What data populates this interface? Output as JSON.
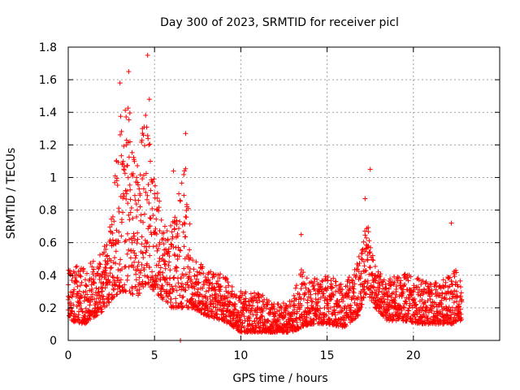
{
  "chart_data": {
    "type": "scatter",
    "title": "Day 300 of 2023, SRMTID for receiver picl",
    "xlabel": "GPS time / hours",
    "ylabel": "SRMTID / TECUs",
    "xlim": [
      0,
      25
    ],
    "ylim": [
      0,
      1.8
    ],
    "x_ticks": [
      "0",
      "5",
      "10",
      "15",
      "20"
    ],
    "y_ticks": [
      "0",
      "0.2",
      "0.4",
      "0.6",
      "0.8",
      "1",
      "1.2",
      "1.4",
      "1.6",
      "1.8"
    ],
    "x_tick_values": [
      0,
      5,
      10,
      15,
      20
    ],
    "y_tick_values": [
      0,
      0.2,
      0.4,
      0.6,
      0.8,
      1.0,
      1.2,
      1.4,
      1.6,
      1.8
    ],
    "grid": true,
    "marker": "+",
    "color": "#ff0000",
    "series": [
      {
        "name": "SRMTID",
        "x_range": [
          0,
          22.8
        ],
        "description_points": [
          {
            "x": 0.0,
            "y": 0.25
          },
          {
            "x": 0.3,
            "y": 0.3
          },
          {
            "x": 0.6,
            "y": 0.4
          },
          {
            "x": 1.0,
            "y": 0.3
          },
          {
            "x": 1.5,
            "y": 0.35
          },
          {
            "x": 1.8,
            "y": 0.45
          },
          {
            "x": 2.2,
            "y": 0.35
          },
          {
            "x": 2.6,
            "y": 0.6
          },
          {
            "x": 2.8,
            "y": 1.1
          },
          {
            "x": 3.0,
            "y": 1.58
          },
          {
            "x": 3.2,
            "y": 0.9
          },
          {
            "x": 3.5,
            "y": 1.65
          },
          {
            "x": 3.7,
            "y": 0.6
          },
          {
            "x": 4.0,
            "y": 0.8
          },
          {
            "x": 4.3,
            "y": 1.3
          },
          {
            "x": 4.6,
            "y": 1.75
          },
          {
            "x": 4.7,
            "y": 1.48
          },
          {
            "x": 5.0,
            "y": 0.9
          },
          {
            "x": 5.3,
            "y": 0.6
          },
          {
            "x": 5.6,
            "y": 0.7
          },
          {
            "x": 6.1,
            "y": 1.04
          },
          {
            "x": 6.5,
            "y": 0.0
          },
          {
            "x": 6.8,
            "y": 1.27
          },
          {
            "x": 7.0,
            "y": 0.5
          },
          {
            "x": 7.5,
            "y": 0.35
          },
          {
            "x": 8.0,
            "y": 0.3
          },
          {
            "x": 8.5,
            "y": 0.28
          },
          {
            "x": 9.0,
            "y": 0.25
          },
          {
            "x": 9.5,
            "y": 0.22
          },
          {
            "x": 10.0,
            "y": 0.18
          },
          {
            "x": 10.5,
            "y": 0.1
          },
          {
            "x": 11.0,
            "y": 0.2
          },
          {
            "x": 11.5,
            "y": 0.25
          },
          {
            "x": 12.0,
            "y": 0.15
          },
          {
            "x": 12.5,
            "y": 0.1
          },
          {
            "x": 13.0,
            "y": 0.12
          },
          {
            "x": 13.5,
            "y": 0.65
          },
          {
            "x": 14.0,
            "y": 0.3
          },
          {
            "x": 14.5,
            "y": 0.25
          },
          {
            "x": 15.0,
            "y": 0.2
          },
          {
            "x": 15.5,
            "y": 0.3
          },
          {
            "x": 16.0,
            "y": 0.15
          },
          {
            "x": 16.5,
            "y": 0.3
          },
          {
            "x": 17.0,
            "y": 0.5
          },
          {
            "x": 17.2,
            "y": 0.87
          },
          {
            "x": 17.5,
            "y": 1.05
          },
          {
            "x": 17.8,
            "y": 0.4
          },
          {
            "x": 18.0,
            "y": 0.3
          },
          {
            "x": 18.5,
            "y": 0.25
          },
          {
            "x": 19.0,
            "y": 0.3
          },
          {
            "x": 19.5,
            "y": 0.4
          },
          {
            "x": 20.0,
            "y": 0.3
          },
          {
            "x": 20.5,
            "y": 0.25
          },
          {
            "x": 21.0,
            "y": 0.3
          },
          {
            "x": 21.5,
            "y": 0.22
          },
          {
            "x": 22.0,
            "y": 0.3
          },
          {
            "x": 22.2,
            "y": 0.72
          },
          {
            "x": 22.5,
            "y": 0.3
          },
          {
            "x": 22.8,
            "y": 0.25
          }
        ],
        "envelope": [
          {
            "x": 0.0,
            "low": 0.12,
            "high": 0.46
          },
          {
            "x": 1.0,
            "low": 0.1,
            "high": 0.45
          },
          {
            "x": 2.0,
            "low": 0.18,
            "high": 0.55
          },
          {
            "x": 2.5,
            "low": 0.25,
            "high": 0.75
          },
          {
            "x": 3.0,
            "low": 0.3,
            "high": 1.4
          },
          {
            "x": 3.5,
            "low": 0.3,
            "high": 1.45
          },
          {
            "x": 4.0,
            "low": 0.25,
            "high": 1.1
          },
          {
            "x": 4.5,
            "low": 0.35,
            "high": 1.45
          },
          {
            "x": 5.0,
            "low": 0.3,
            "high": 1.0
          },
          {
            "x": 5.5,
            "low": 0.25,
            "high": 0.75
          },
          {
            "x": 6.0,
            "low": 0.2,
            "high": 0.7
          },
          {
            "x": 6.8,
            "low": 0.2,
            "high": 1.1
          },
          {
            "x": 7.2,
            "low": 0.2,
            "high": 0.5
          },
          {
            "x": 8.0,
            "low": 0.15,
            "high": 0.45
          },
          {
            "x": 9.0,
            "low": 0.12,
            "high": 0.4
          },
          {
            "x": 10.0,
            "low": 0.05,
            "high": 0.3
          },
          {
            "x": 11.0,
            "low": 0.05,
            "high": 0.3
          },
          {
            "x": 12.0,
            "low": 0.05,
            "high": 0.22
          },
          {
            "x": 13.0,
            "low": 0.05,
            "high": 0.25
          },
          {
            "x": 13.5,
            "low": 0.08,
            "high": 0.45
          },
          {
            "x": 14.0,
            "low": 0.1,
            "high": 0.38
          },
          {
            "x": 15.0,
            "low": 0.1,
            "high": 0.4
          },
          {
            "x": 16.0,
            "low": 0.08,
            "high": 0.35
          },
          {
            "x": 16.8,
            "low": 0.15,
            "high": 0.5
          },
          {
            "x": 17.3,
            "low": 0.3,
            "high": 0.75
          },
          {
            "x": 17.8,
            "low": 0.2,
            "high": 0.45
          },
          {
            "x": 18.5,
            "low": 0.12,
            "high": 0.38
          },
          {
            "x": 19.5,
            "low": 0.12,
            "high": 0.42
          },
          {
            "x": 20.5,
            "low": 0.1,
            "high": 0.38
          },
          {
            "x": 21.5,
            "low": 0.1,
            "high": 0.35
          },
          {
            "x": 22.2,
            "low": 0.1,
            "high": 0.5
          },
          {
            "x": 22.8,
            "low": 0.12,
            "high": 0.35
          }
        ]
      }
    ]
  }
}
